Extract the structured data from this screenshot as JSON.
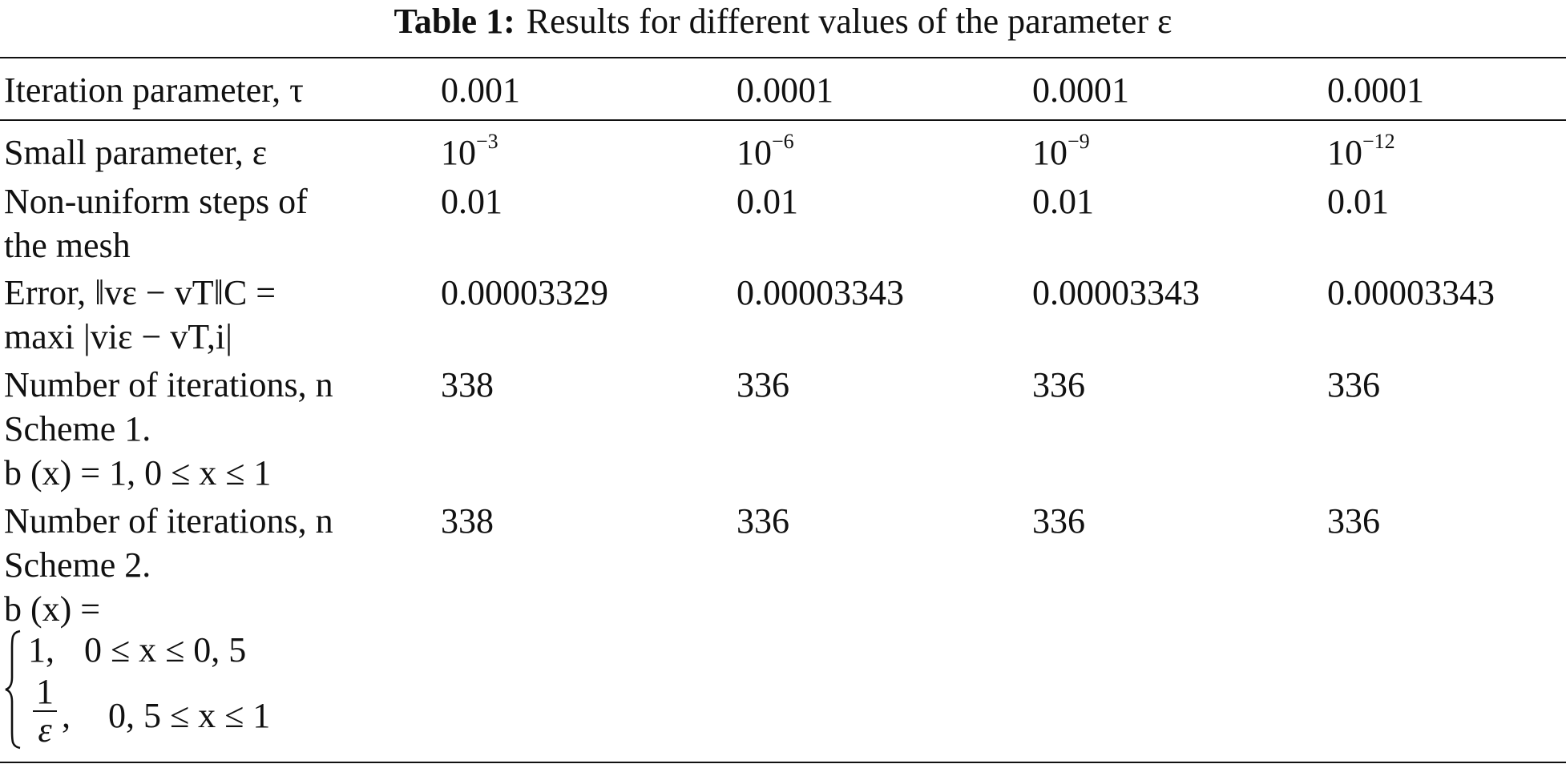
{
  "caption": {
    "label": "Table 1:",
    "text": "Results for different values of the parameter ε"
  },
  "header": {
    "label": "Iteration parameter, τ",
    "values": [
      "0.001",
      "0.0001",
      "0.0001",
      "0.0001"
    ]
  },
  "rows": {
    "small_param": {
      "label": "Small parameter, ε",
      "base": "10",
      "exponents": [
        "−3",
        "−6",
        "−9",
        "−12"
      ]
    },
    "mesh": {
      "label_line1": "Non-uniform steps of",
      "label_line2": "the mesh",
      "values": [
        "0.01",
        "0.01",
        "0.01",
        "0.01"
      ]
    },
    "error": {
      "label_line1": "Error, ‖vε − vT‖C =",
      "label_line2": "maxi |viε − vT,i|",
      "values": [
        "0.00003329",
        "0.00003343",
        "0.00003343",
        "0.00003343"
      ]
    },
    "scheme1": {
      "label_line1": "Number of iterations, n",
      "label_line2": "Scheme 1.",
      "label_line3": "b (x) = 1, 0 ≤ x ≤ 1",
      "values": [
        "338",
        "336",
        "336",
        "336"
      ]
    },
    "scheme2": {
      "label_line1": "Number of iterations, n",
      "label_line2": "Scheme 2.",
      "label_line3": "b (x) =",
      "case1_value": "1,",
      "case1_condition": "0 ≤ x ≤ 0, 5",
      "case2_numerator": "1",
      "case2_denominator": "ε",
      "case2_tail": ",",
      "case2_condition": "0, 5 ≤ x ≤ 1",
      "values": [
        "338",
        "336",
        "336",
        "336"
      ]
    }
  }
}
